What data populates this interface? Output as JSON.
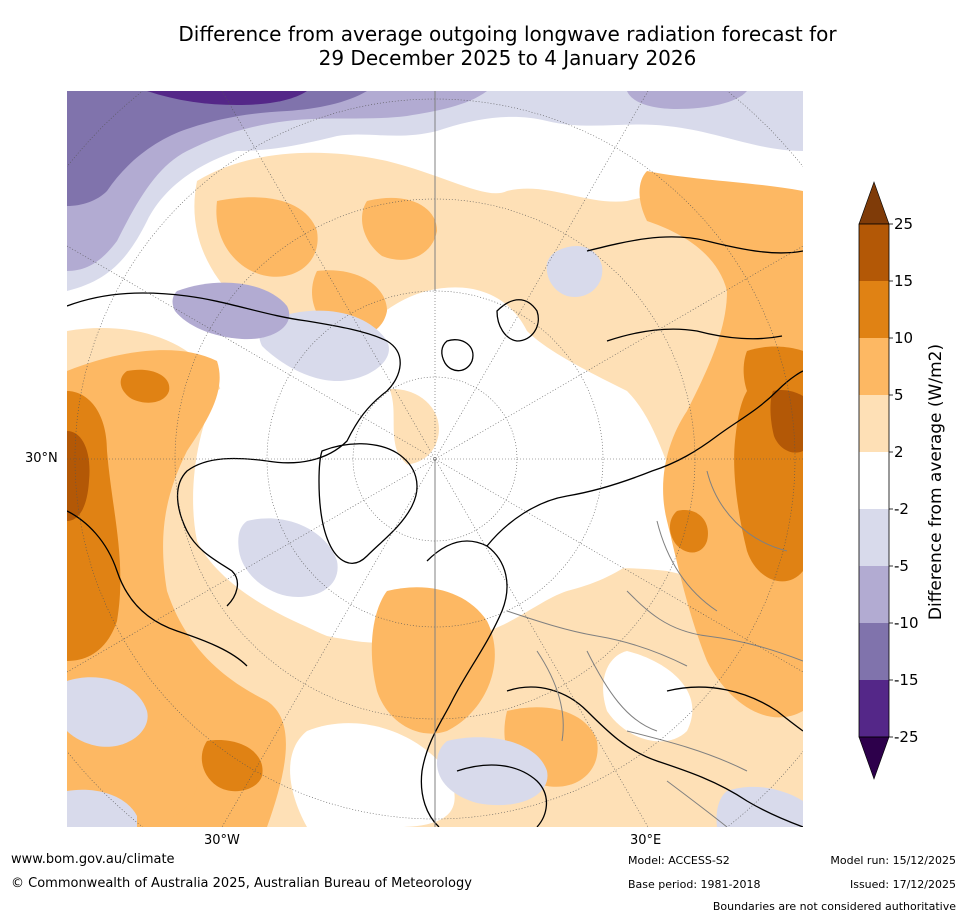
{
  "title": {
    "line1": "Difference from average outgoing longwave radiation forecast for",
    "line2": "29 December 2025 to 4 January 2026"
  },
  "map": {
    "projection": "north-polar-stereographic",
    "axis_labels": {
      "left": "30°N",
      "bottom_left": "30°W",
      "bottom_right": "30°E"
    }
  },
  "colorbar": {
    "title": "Difference from average (W/m2)",
    "tick_labels": [
      "25",
      "15",
      "10",
      "5",
      "2",
      "-2",
      "-5",
      "-10",
      "-15",
      "-25"
    ],
    "colors": {
      "above_25": "#7f3b08",
      "15_25": "#b35806",
      "10_15": "#e08214",
      "5_10": "#fdb863",
      "2_5": "#fee0b6",
      "neutral": "#ffffff",
      "m2_m5": "#d8daeb",
      "m5_m10": "#b2abd2",
      "m10_m15": "#8073ac",
      "m15_m25": "#542788",
      "below_m25": "#2d004b"
    }
  },
  "footer": {
    "website": "www.bom.gov.au/climate",
    "copyright": "© Commonwealth of Australia 2025, Australian Bureau of Meteorology",
    "model": "Model: ACCESS-S2",
    "base_period": "Base period: 1981-2018",
    "model_run": "Model run: 15/12/2025",
    "issued": "Issued: 17/12/2025",
    "disclaimer": "Boundaries are not considered authoritative"
  }
}
